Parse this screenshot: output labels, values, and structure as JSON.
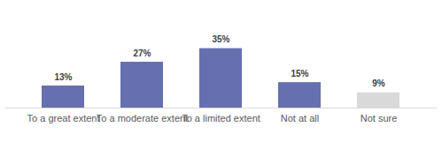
{
  "chart_data": {
    "type": "bar",
    "categories": [
      "To a great extent",
      "To a moderate extent",
      "To a limited extent",
      "Not at all",
      "Not sure"
    ],
    "values": [
      13,
      27,
      35,
      15,
      9
    ],
    "value_labels": [
      "13%",
      "27%",
      "35%",
      "15%",
      "9%"
    ],
    "colors": [
      "#6670b0",
      "#6670b0",
      "#6670b0",
      "#6670b0",
      "#d9d9d9"
    ],
    "ylim": [
      0,
      40
    ],
    "data_labels": true,
    "tick_labels": "x",
    "grid": false
  }
}
